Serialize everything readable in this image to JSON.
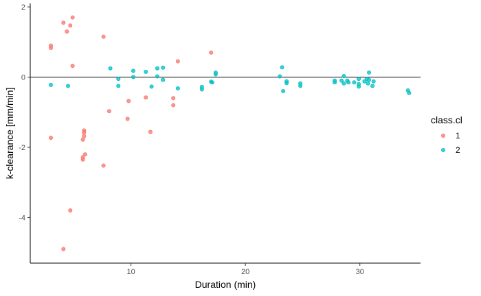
{
  "chart_data": {
    "type": "scatter",
    "title": "",
    "xlabel": "Duration (min)",
    "ylabel": "k-clearance [mm/min]",
    "xlim": [
      1.2,
      35.3
    ],
    "ylim": [
      -5.3,
      2.1
    ],
    "xticks": [
      10,
      20,
      30
    ],
    "yticks": [
      2,
      0,
      -2,
      -4
    ],
    "xtick_labels": [
      "10",
      "20",
      "30"
    ],
    "ytick_labels": [
      "2",
      "0",
      "-2",
      "-4"
    ],
    "hline": 0,
    "legend": {
      "title": "class.cl",
      "position": "right"
    },
    "series": [
      {
        "name": "1",
        "color": "#F8766D",
        "points": [
          [
            3.0,
            0.9
          ],
          [
            3.0,
            0.83
          ],
          [
            3.0,
            -1.73
          ],
          [
            4.1,
            1.55
          ],
          [
            4.1,
            -4.9
          ],
          [
            4.4,
            1.3
          ],
          [
            4.7,
            1.47
          ],
          [
            4.7,
            -3.8
          ],
          [
            4.9,
            1.7
          ],
          [
            4.9,
            0.32
          ],
          [
            5.9,
            -1.52
          ],
          [
            5.9,
            -1.58
          ],
          [
            5.9,
            -1.68
          ],
          [
            5.8,
            -1.78
          ],
          [
            6.0,
            -2.2
          ],
          [
            5.8,
            -2.28
          ],
          [
            5.8,
            -2.35
          ],
          [
            7.6,
            1.15
          ],
          [
            7.6,
            -2.52
          ],
          [
            8.1,
            -0.97
          ],
          [
            9.8,
            -0.68
          ],
          [
            9.7,
            -1.19
          ],
          [
            11.3,
            -0.58
          ],
          [
            11.7,
            -1.56
          ],
          [
            13.7,
            -0.6
          ],
          [
            13.7,
            -0.8
          ],
          [
            14.1,
            0.45
          ],
          [
            17.0,
            0.7
          ]
        ]
      },
      {
        "name": "2",
        "color": "#00BFC4",
        "points": [
          [
            3.0,
            -0.22
          ],
          [
            4.5,
            -0.25
          ],
          [
            8.2,
            0.25
          ],
          [
            8.9,
            -0.05
          ],
          [
            8.9,
            -0.25
          ],
          [
            10.2,
            0.18
          ],
          [
            10.2,
            0.0
          ],
          [
            11.3,
            0.15
          ],
          [
            11.8,
            -0.27
          ],
          [
            12.3,
            0.25
          ],
          [
            12.3,
            0.02
          ],
          [
            12.8,
            0.27
          ],
          [
            12.8,
            -0.08
          ],
          [
            14.1,
            -0.32
          ],
          [
            16.2,
            -0.28
          ],
          [
            16.2,
            -0.35
          ],
          [
            17.0,
            -0.13
          ],
          [
            17.1,
            -0.15
          ],
          [
            17.4,
            0.13
          ],
          [
            17.4,
            0.08
          ],
          [
            23.0,
            0.02
          ],
          [
            23.2,
            0.28
          ],
          [
            23.3,
            -0.4
          ],
          [
            23.6,
            -0.12
          ],
          [
            23.6,
            -0.17
          ],
          [
            24.8,
            -0.18
          ],
          [
            24.8,
            -0.25
          ],
          [
            27.8,
            -0.1
          ],
          [
            27.8,
            -0.15
          ],
          [
            28.4,
            -0.1
          ],
          [
            28.6,
            0.03
          ],
          [
            28.6,
            -0.18
          ],
          [
            28.9,
            -0.1
          ],
          [
            29.0,
            -0.15
          ],
          [
            29.5,
            -0.15
          ],
          [
            29.9,
            -0.05
          ],
          [
            29.9,
            -0.2
          ],
          [
            29.9,
            -0.27
          ],
          [
            30.4,
            -0.12
          ],
          [
            30.6,
            -0.05
          ],
          [
            30.7,
            -0.18
          ],
          [
            30.8,
            0.13
          ],
          [
            30.8,
            -0.08
          ],
          [
            31.1,
            -0.25
          ],
          [
            31.2,
            -0.12
          ],
          [
            34.2,
            -0.38
          ],
          [
            34.3,
            -0.45
          ]
        ]
      }
    ]
  }
}
